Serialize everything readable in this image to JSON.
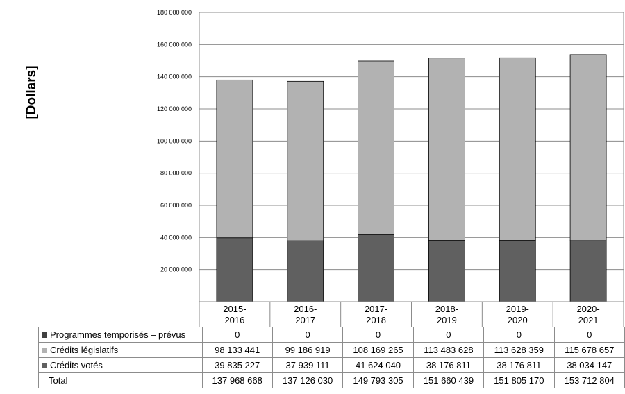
{
  "chart_data": {
    "type": "bar",
    "stacked": true,
    "ylabel": "[Dollars]",
    "ylim": [
      0,
      180000000
    ],
    "yticks": [
      {
        "value": 20000000,
        "label": "20 000 000"
      },
      {
        "value": 40000000,
        "label": "40 000 000"
      },
      {
        "value": 60000000,
        "label": "60 000 000"
      },
      {
        "value": 80000000,
        "label": "80 000 000"
      },
      {
        "value": 100000000,
        "label": "100 000 000"
      },
      {
        "value": 120000000,
        "label": "120 000 000"
      },
      {
        "value": 140000000,
        "label": "140 000 000"
      },
      {
        "value": 160000000,
        "label": "160 000 000"
      },
      {
        "value": 180000000,
        "label": "180 000 000"
      }
    ],
    "categories": [
      {
        "line1": "2015-",
        "line2": "2016"
      },
      {
        "line1": "2016-",
        "line2": "2017"
      },
      {
        "line1": "2017-",
        "line2": "2018"
      },
      {
        "line1": "2018-",
        "line2": "2019"
      },
      {
        "line1": "2019-",
        "line2": "2020"
      },
      {
        "line1": "2020-",
        "line2": "2021"
      }
    ],
    "grid": true,
    "series": [
      {
        "name": "Programmes temporisés – prévus",
        "color": "#404040",
        "values": [
          0,
          0,
          0,
          0,
          0,
          0
        ],
        "labels": [
          "0",
          "0",
          "0",
          "0",
          "0",
          "0"
        ]
      },
      {
        "name": "Crédits législatifs",
        "color": "#b2b2b2",
        "values": [
          98133441,
          99186919,
          108169265,
          113483628,
          113628359,
          115678657
        ],
        "labels": [
          "98 133 441",
          "99 186 919",
          "108 169 265",
          "113 483 628",
          "113 628 359",
          "115 678 657"
        ]
      },
      {
        "name": "Crédits votés",
        "color": "#606060",
        "values": [
          39835227,
          37939111,
          41624040,
          38176811,
          38176811,
          38034147
        ],
        "labels": [
          "39 835 227",
          "37 939 111",
          "41 624 040",
          "38 176 811",
          "38 176 811",
          "38 034 147"
        ]
      }
    ],
    "total": {
      "name": "Total",
      "values": [
        137968668,
        137126030,
        149793305,
        151660439,
        151805170,
        153712804
      ],
      "labels": [
        "137 968 668",
        "137 126 030",
        "149 793 305",
        "151 660 439",
        "151 805 170",
        "153 712 804"
      ]
    }
  }
}
